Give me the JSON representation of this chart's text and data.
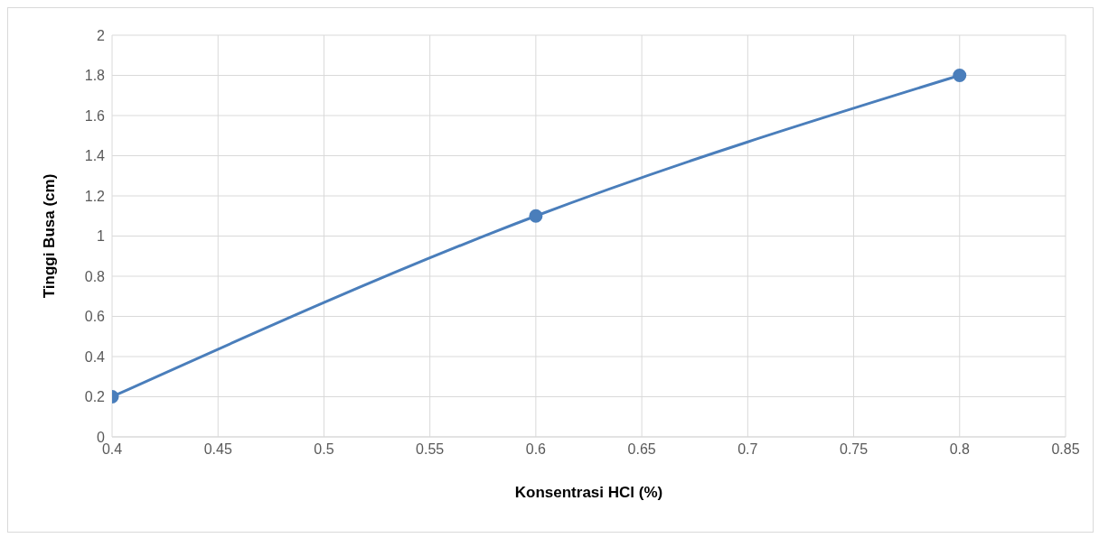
{
  "chart_data": {
    "type": "line",
    "xlabel": "Konsentrasi HCl (%)",
    "ylabel": "Tinggi Busa (cm)",
    "x": [
      0.4,
      0.6,
      0.8
    ],
    "series": [
      {
        "color": "#4a7ebb",
        "values": [
          0.2,
          1.1,
          1.8
        ]
      }
    ],
    "xlim": [
      0.4,
      0.85
    ],
    "xticks": [
      0.4,
      0.45,
      0.5,
      0.55,
      0.6,
      0.65,
      0.7,
      0.75,
      0.8,
      0.85
    ],
    "ylim": [
      0,
      2
    ],
    "yticks": [
      0,
      0.2,
      0.4,
      0.6,
      0.8,
      1,
      1.2,
      1.4,
      1.6,
      1.8,
      2
    ],
    "grid": true,
    "marker": "circle",
    "line_style": "solid",
    "legend": false
  }
}
